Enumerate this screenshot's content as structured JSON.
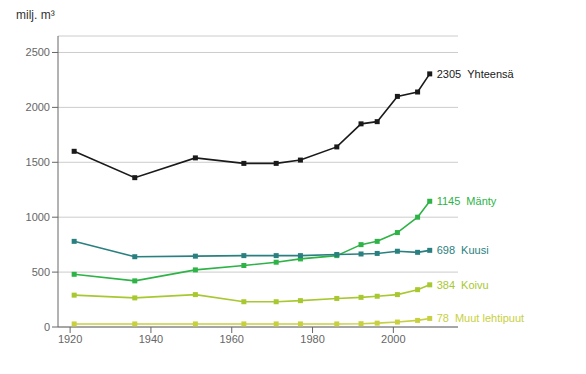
{
  "chart_data": {
    "type": "line",
    "ylabel": "milj. m³",
    "x": [
      1921,
      1936,
      1951,
      1963,
      1971,
      1977,
      1986,
      1992,
      1996,
      2001,
      2006,
      2009
    ],
    "series": [
      {
        "name": "Yhteensä",
        "color": "#1a1a1a",
        "marker": "square",
        "values": [
          1600,
          1360,
          1540,
          1490,
          1490,
          1520,
          1640,
          1850,
          1870,
          2100,
          2140,
          2305
        ]
      },
      {
        "name": "Mänty",
        "color": "#2db346",
        "marker": "square",
        "values": [
          480,
          420,
          520,
          560,
          590,
          620,
          650,
          750,
          780,
          860,
          1000,
          1145
        ]
      },
      {
        "name": "Kuusi",
        "color": "#2a8080",
        "marker": "square",
        "values": [
          780,
          640,
          645,
          650,
          650,
          650,
          660,
          665,
          670,
          690,
          680,
          698
        ]
      },
      {
        "name": "Koivu",
        "color": "#a8c830",
        "marker": "square",
        "values": [
          290,
          265,
          295,
          230,
          230,
          240,
          260,
          270,
          280,
          295,
          340,
          384
        ]
      },
      {
        "name": "Muut lehtipuut",
        "color": "#c8d040",
        "marker": "square",
        "values": [
          28,
          28,
          28,
          28,
          28,
          28,
          28,
          30,
          35,
          45,
          60,
          78
        ]
      }
    ],
    "annotations": [
      {
        "series": "Yhteensä",
        "text": "2305"
      },
      {
        "series": "Mänty",
        "text": "1145"
      },
      {
        "series": "Kuusi",
        "text": "698"
      },
      {
        "series": "Koivu",
        "text": "384"
      },
      {
        "series": "Muut lehtipuut",
        "text": "78"
      }
    ],
    "xlim": [
      1917,
      2016
    ],
    "xticks": [
      1920,
      1940,
      1960,
      1980,
      2000
    ],
    "ylim": [
      0,
      2650
    ],
    "yticks": [
      0,
      500,
      1000,
      1500,
      2000,
      2500
    ],
    "grid": true
  }
}
